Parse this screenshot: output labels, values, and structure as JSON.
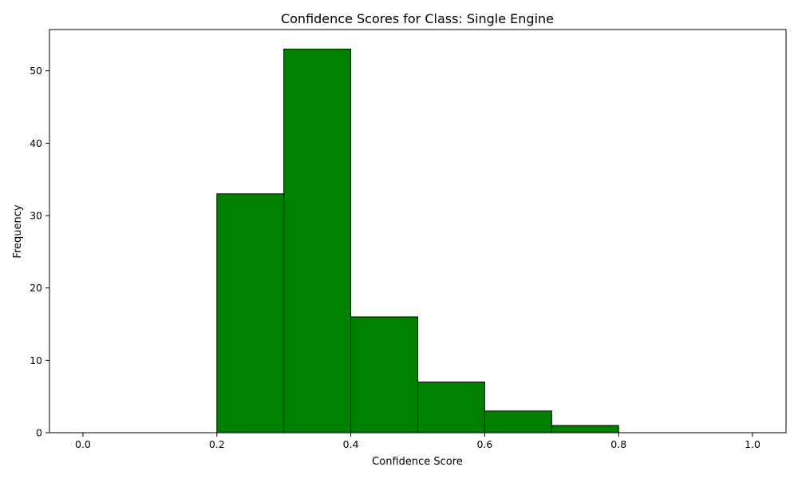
{
  "chart_data": {
    "type": "bar",
    "title": "Confidence Scores for Class: Single Engine",
    "xlabel": "Confidence Score",
    "ylabel": "Frequency",
    "bin_edges": [
      0.0,
      0.1,
      0.2,
      0.3,
      0.4,
      0.5,
      0.6,
      0.7,
      0.8,
      0.9,
      1.0
    ],
    "values": [
      0,
      0,
      33,
      53,
      16,
      7,
      3,
      1,
      0,
      0
    ],
    "xlim": [
      -0.05,
      1.05
    ],
    "ylim": [
      0,
      55.7
    ],
    "xticks": [
      0.0,
      0.2,
      0.4,
      0.6,
      0.8,
      1.0
    ],
    "xtick_labels": [
      "0.0",
      "0.2",
      "0.4",
      "0.6",
      "0.8",
      "1.0"
    ],
    "yticks": [
      0,
      10,
      20,
      30,
      40,
      50
    ],
    "ytick_labels": [
      "0",
      "10",
      "20",
      "30",
      "40",
      "50"
    ],
    "bar_color": "#008000",
    "edge_color": "#000000",
    "grid": false,
    "legend": "none"
  }
}
